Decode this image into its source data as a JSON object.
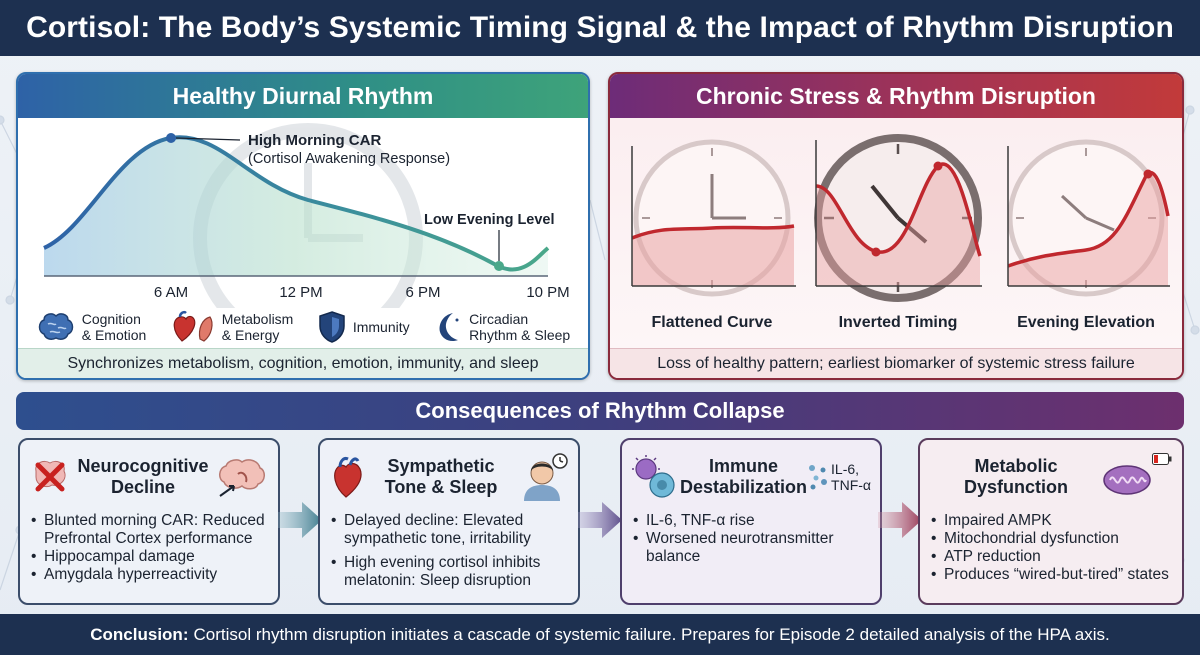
{
  "title": "Cortisol: The Body’s Systemic Timing Signal & the Impact of Rhythm Disruption",
  "healthy": {
    "heading": "Healthy Diurnal Rhythm",
    "peak_label": "High Morning CAR",
    "peak_sub": "(Cortisol Awakening Response)",
    "low_label": "Low Evening Level",
    "ticks": [
      "6 AM",
      "12 PM",
      "6 PM",
      "10 PM"
    ],
    "icons": [
      {
        "icon": "brain-icon",
        "label": "Cognition\n& Emotion"
      },
      {
        "icon": "heart-muscle-icon",
        "label": "Metabolism\n& Energy"
      },
      {
        "icon": "shield-icon",
        "label": "Immunity"
      },
      {
        "icon": "moon-icon",
        "label": "Circadian\nRhythm & Sleep"
      }
    ],
    "footer": "Synchronizes metabolism, cognition, emotion, immunity, and sleep"
  },
  "stress": {
    "heading": "Chronic Stress & Rhythm Disruption",
    "patterns": [
      "Flattened Curve",
      "Inverted Timing",
      "Evening Elevation"
    ],
    "footer": "Loss of healthy pattern; earliest biomarker of systemic stress failure"
  },
  "consequences": {
    "heading": "Consequences of Rhythm Collapse",
    "cards": [
      {
        "title": "Neurocognitive\nDecline",
        "icon": "brain-cross-icon",
        "bullets": [
          "Blunted morning CAR: Reduced Prefrontal Cortex performance",
          "Hippocampal damage",
          "Amygdala hyperreactivity"
        ]
      },
      {
        "title": "Sympathetic\nTone & Sleep",
        "icon": "heart-person-icon",
        "bullets": [
          "Delayed decline: Elevated sympathetic tone, irritability",
          "High evening cortisol inhibits melatonin: Sleep disruption"
        ]
      },
      {
        "title": "Immune\nDestabilization",
        "icon": "immune-cells-icon",
        "badge": "IL-6,\nTNF-α",
        "bullets": [
          "IL-6, TNF-α rise",
          "Worsened neurotransmitter balance"
        ]
      },
      {
        "title": "Metabolic\nDysfunction",
        "icon": "mitochondria-battery-icon",
        "bullets": [
          "Impaired AMPK",
          "Mitochondrial dysfunction",
          "ATP reduction",
          "Produces “wired-but-tired” states"
        ]
      }
    ]
  },
  "conclusion": {
    "label": "Conclusion:",
    "text": "Cortisol rhythm disruption initiates a cascade of systemic failure. Prepares for Episode 2 detailed analysis of the HPA axis."
  },
  "colors": {
    "navy": "#1d3050",
    "healthy_curve": "#2e62a7",
    "stress_curve": "#c0282e"
  }
}
